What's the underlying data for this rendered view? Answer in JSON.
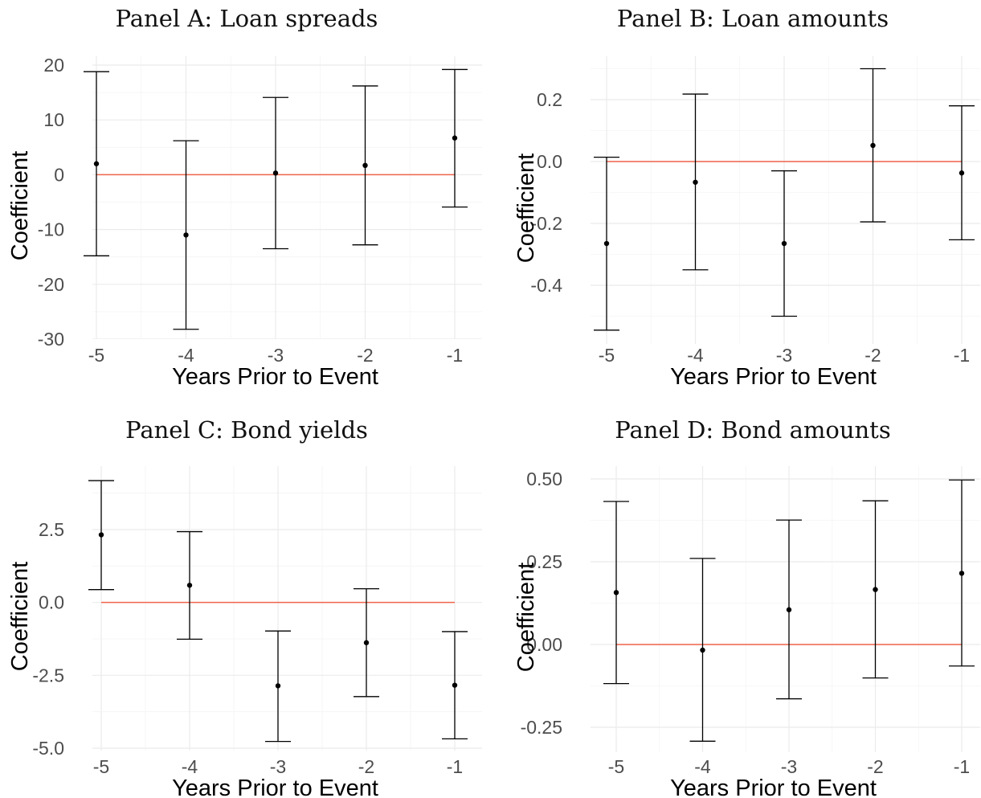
{
  "chart_data": [
    {
      "type": "scatter",
      "panel": "A",
      "title": "Panel A: Loan spreads",
      "xlabel": "Years Prior to Event",
      "ylabel": "Coefficient",
      "x": [
        -5,
        -4,
        -3,
        -2,
        -1
      ],
      "x_tick_labels": [
        "-5",
        "-4",
        "-3",
        "-2",
        "-1"
      ],
      "y_ticks": [
        20,
        10,
        0,
        -10,
        -20,
        -30
      ],
      "y_tick_labels": [
        "20",
        "10",
        "0",
        "-10",
        "-20",
        "-30"
      ],
      "ylim": [
        -30,
        22
      ],
      "series": [
        {
          "values": [
            2.0,
            -11.0,
            0.3,
            1.7,
            6.7
          ],
          "ci_low": [
            -14.8,
            -28.2,
            -13.5,
            -12.8,
            -5.9
          ],
          "ci_high": [
            18.8,
            6.2,
            14.1,
            16.2,
            19.2
          ]
        }
      ],
      "reference_line": {
        "y": 0,
        "color": "#f0634a"
      },
      "grid": true
    },
    {
      "type": "scatter",
      "panel": "B",
      "title": "Panel B: Loan amounts",
      "xlabel": "Years Prior to Event",
      "ylabel": "Coefficient",
      "x": [
        -5,
        -4,
        -3,
        -2,
        -1
      ],
      "x_tick_labels": [
        "-5",
        "-4",
        "-3",
        "-2",
        "-1"
      ],
      "y_ticks": [
        0.2,
        0.0,
        -0.2,
        -0.4
      ],
      "y_tick_labels": [
        "0.2",
        "0.0",
        "-0.2",
        "-0.4"
      ],
      "ylim": [
        -0.59,
        0.3
      ],
      "series": [
        {
          "values": [
            -0.265,
            -0.067,
            -0.265,
            0.052,
            -0.037
          ],
          "ci_low": [
            -0.545,
            -0.35,
            -0.5,
            -0.195,
            -0.253
          ],
          "ci_high": [
            0.014,
            0.218,
            -0.03,
            0.3,
            0.18
          ]
        }
      ],
      "reference_line": {
        "y": 0,
        "color": "#f0634a"
      },
      "grid": true
    },
    {
      "type": "scatter",
      "panel": "C",
      "title": "Panel C: Bond yields",
      "xlabel": "Years Prior to Event",
      "ylabel": "Coefficient",
      "x": [
        -5,
        -4,
        -3,
        -2,
        -1
      ],
      "x_tick_labels": [
        "-5",
        "-4",
        "-3",
        "-2",
        "-1"
      ],
      "y_ticks": [
        2.5,
        0.0,
        -2.5,
        -5.0
      ],
      "y_tick_labels": [
        "2.5",
        "0.0",
        "-2.5",
        "-5.0"
      ],
      "ylim": [
        -5.0,
        4.5
      ],
      "series": [
        {
          "values": [
            2.32,
            0.59,
            -2.86,
            -1.38,
            -2.84
          ],
          "ci_low": [
            0.44,
            -1.26,
            -4.77,
            -3.23,
            -4.68
          ],
          "ci_high": [
            4.18,
            2.43,
            -0.98,
            0.47,
            -1.0
          ]
        }
      ],
      "reference_line": {
        "y": 0,
        "color": "#f0634a"
      },
      "grid": true
    },
    {
      "type": "scatter",
      "panel": "D",
      "title": "Panel D: Bond amounts",
      "xlabel": "Years Prior to Event",
      "ylabel": "Coefficient",
      "x": [
        -5,
        -4,
        -3,
        -2,
        -1
      ],
      "x_tick_labels": [
        "-5",
        "-4",
        "-3",
        "-2",
        "-1"
      ],
      "y_ticks": [
        0.5,
        0.25,
        0.0,
        -0.25
      ],
      "y_tick_labels": [
        "0.50",
        "0.25",
        "0.00",
        "-0.25"
      ],
      "ylim": [
        -0.33,
        0.53
      ],
      "series": [
        {
          "values": [
            0.157,
            -0.017,
            0.105,
            0.166,
            0.215
          ],
          "ci_low": [
            -0.118,
            -0.292,
            -0.164,
            -0.101,
            -0.065
          ],
          "ci_high": [
            0.432,
            0.26,
            0.376,
            0.434,
            0.497
          ]
        }
      ],
      "reference_line": {
        "y": 0,
        "color": "#f0634a"
      },
      "grid": true
    }
  ]
}
